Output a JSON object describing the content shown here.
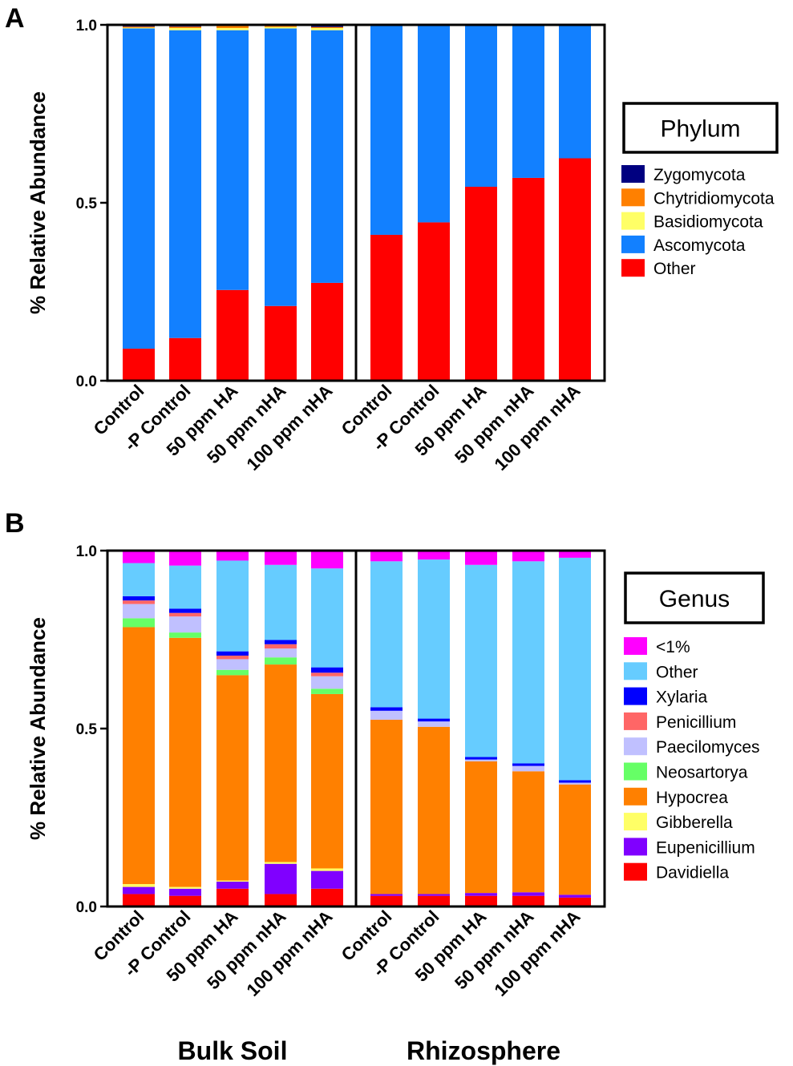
{
  "panel_labels": [
    "A",
    "B"
  ],
  "group_labels": [
    "Bulk Soil",
    "Rhizosphere"
  ],
  "chart_data": [
    {
      "type": "bar",
      "stacked": true,
      "panel": "A",
      "ylabel": "% Relative Abundance",
      "ylim": [
        0,
        1
      ],
      "yticks": [
        "0.0",
        "0.5",
        "1.0"
      ],
      "legend_title": "Phylum",
      "legend_position": "right",
      "groups": [
        "Bulk Soil",
        "Rhizosphere"
      ],
      "categories": [
        "Control",
        "-P Control",
        "50 ppm HA",
        "50 ppm nHA",
        "100 ppm nHA",
        "Control",
        "-P Control",
        "50 ppm HA",
        "50 ppm nHA",
        "100 ppm nHA"
      ],
      "series": [
        {
          "name": "Other",
          "color": "#ff0000",
          "values": [
            0.09,
            0.12,
            0.255,
            0.21,
            0.275,
            0.41,
            0.445,
            0.545,
            0.57,
            0.625
          ]
        },
        {
          "name": "Ascomycota",
          "color": "#1280ff",
          "values": [
            0.9,
            0.865,
            0.73,
            0.78,
            0.71,
            0.59,
            0.555,
            0.455,
            0.43,
            0.375
          ]
        },
        {
          "name": "Basidiomycota",
          "color": "#ffff66",
          "values": [
            0.002,
            0.006,
            0.006,
            0.004,
            0.006,
            0,
            0,
            0,
            0,
            0
          ]
        },
        {
          "name": "Chytridiomycota",
          "color": "#ff8000",
          "values": [
            0.003,
            0.004,
            0.006,
            0.003,
            0.003,
            0,
            0,
            0,
            0,
            0
          ]
        },
        {
          "name": "Zygomycota",
          "color": "#000080",
          "values": [
            0.005,
            0.005,
            0.003,
            0.003,
            0.006,
            0,
            0,
            0,
            0,
            0
          ]
        }
      ]
    },
    {
      "type": "bar",
      "stacked": true,
      "panel": "B",
      "ylabel": "% Relative Abundance",
      "ylim": [
        0,
        1
      ],
      "yticks": [
        "0.0",
        "0.5",
        "1.0"
      ],
      "legend_title": "Genus",
      "legend_position": "right",
      "groups": [
        "Bulk Soil",
        "Rhizosphere"
      ],
      "categories": [
        "Control",
        "-P Control",
        "50 ppm HA",
        "50 ppm nHA",
        "100 ppm nHA",
        "Control",
        "-P Control",
        "50 ppm HA",
        "50 ppm nHA",
        "100 ppm nHA"
      ],
      "series": [
        {
          "name": "Davidiella",
          "color": "#ff0000",
          "values": [
            0.035,
            0.03,
            0.05,
            0.035,
            0.05,
            0.03,
            0.03,
            0.03,
            0.03,
            0.025
          ]
        },
        {
          "name": "Eupenicillium",
          "color": "#8000ff",
          "values": [
            0.02,
            0.02,
            0.02,
            0.085,
            0.05,
            0.005,
            0.005,
            0.008,
            0.01,
            0.008
          ]
        },
        {
          "name": "Gibberella",
          "color": "#ffff66",
          "values": [
            0.008,
            0.005,
            0.003,
            0.005,
            0.007,
            0,
            0,
            0,
            0,
            0
          ]
        },
        {
          "name": "Hypocrea",
          "color": "#ff8000",
          "values": [
            0.722,
            0.7,
            0.577,
            0.555,
            0.49,
            0.49,
            0.47,
            0.37,
            0.34,
            0.31
          ]
        },
        {
          "name": "Neosartorya",
          "color": "#66ff66",
          "values": [
            0.025,
            0.015,
            0.015,
            0.02,
            0.015,
            0,
            0,
            0,
            0,
            0
          ]
        },
        {
          "name": "Paecilomyces",
          "color": "#c0c0ff",
          "values": [
            0.04,
            0.045,
            0.03,
            0.025,
            0.035,
            0.025,
            0.015,
            0.005,
            0.015,
            0.005
          ]
        },
        {
          "name": "Penicillium",
          "color": "#ff6666",
          "values": [
            0.01,
            0.01,
            0.01,
            0.012,
            0.01,
            0,
            0,
            0,
            0,
            0
          ]
        },
        {
          "name": "Xylaria",
          "color": "#0000ff",
          "values": [
            0.012,
            0.012,
            0.012,
            0.012,
            0.015,
            0.01,
            0.008,
            0.007,
            0.007,
            0.007
          ]
        },
        {
          "name": "Other",
          "color": "#66ccff",
          "values": [
            0.093,
            0.121,
            0.255,
            0.211,
            0.278,
            0.41,
            0.447,
            0.54,
            0.568,
            0.625
          ]
        },
        {
          "name": "<1%",
          "color": "#ff00ff",
          "values": [
            0.035,
            0.042,
            0.028,
            0.04,
            0.05,
            0.03,
            0.025,
            0.04,
            0.03,
            0.02
          ]
        }
      ]
    }
  ]
}
